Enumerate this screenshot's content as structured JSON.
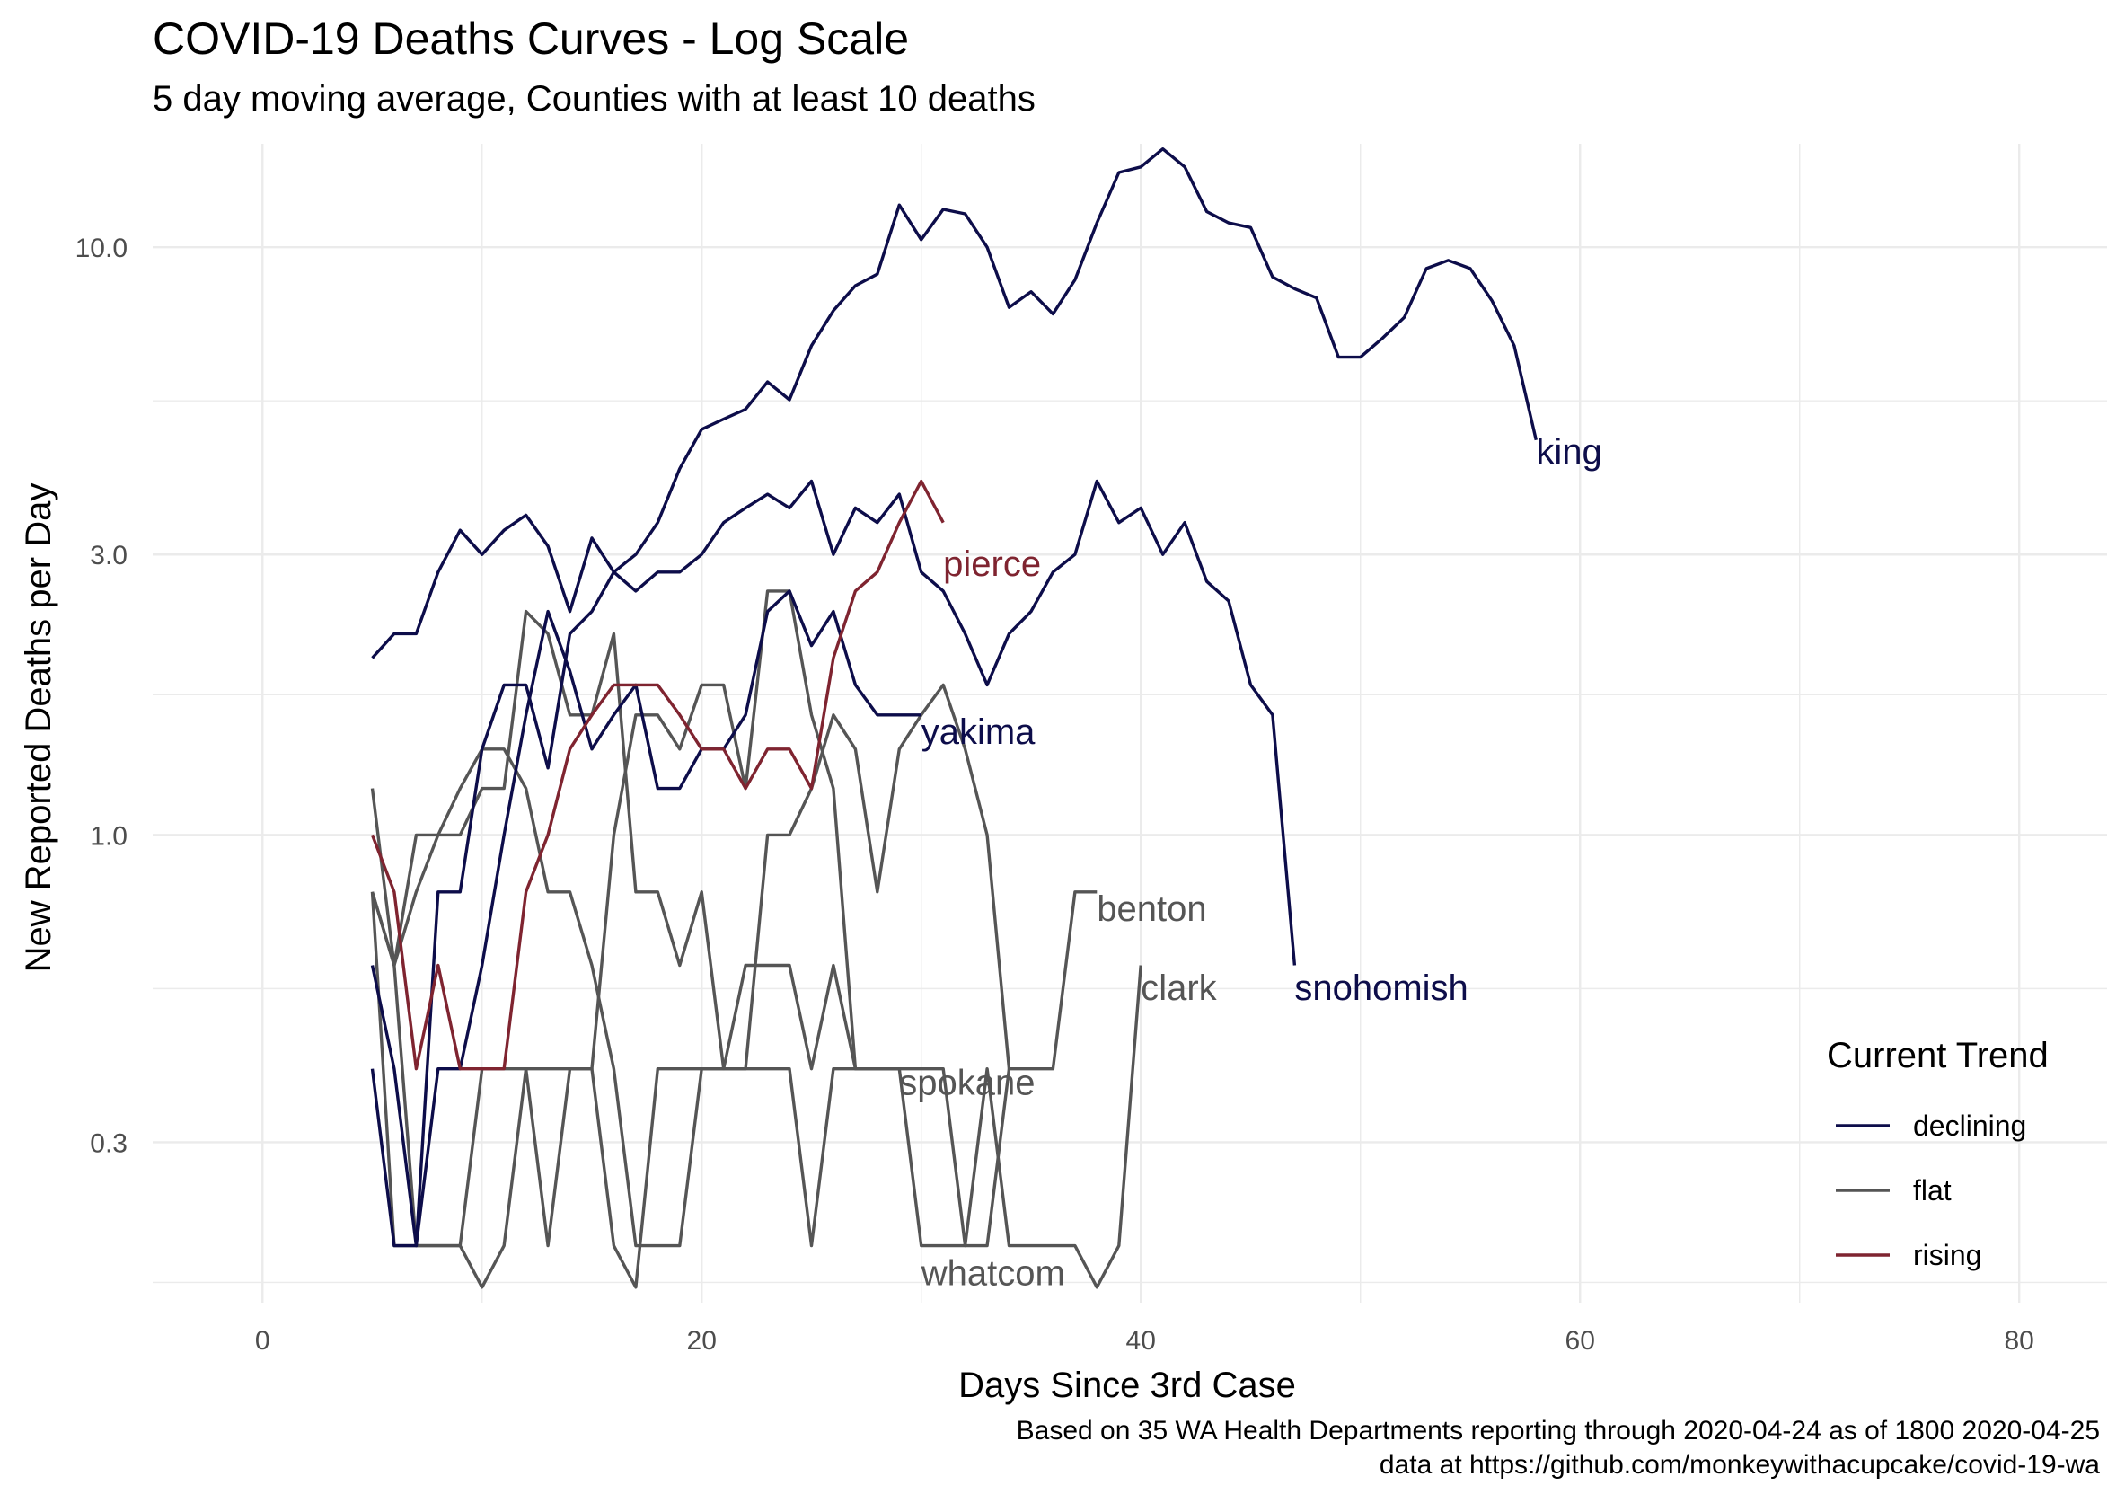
{
  "header": {
    "title": "COVID-19 Deaths Curves - Log Scale",
    "subtitle": "5 day moving average, Counties with at least 10 deaths"
  },
  "caption": {
    "line1": "Based on 35 WA Health Departments reporting through 2020-04-24 as of 1800 2020-04-25",
    "line2": "data at https://github.com/monkeywithacupcake/covid-19-wa"
  },
  "colors": {
    "declining": "#0d0d4a",
    "flat": "#555555",
    "rising": "#7f2430",
    "grid": "#ebebeb"
  },
  "chart_data": {
    "type": "line",
    "title": "COVID-19 Deaths Curves - Log Scale",
    "subtitle": "5 day moving average, Counties with at least 10 deaths",
    "xlabel": "Days Since 3rd Case",
    "ylabel": "New Reported Deaths per Day",
    "xlim": [
      -5,
      84
    ],
    "ylim": [
      0.16,
      15
    ],
    "yscale": "log",
    "x_ticks": [
      0,
      20,
      40,
      60,
      80
    ],
    "y_ticks": [
      0.3,
      1.0,
      3.0,
      10.0
    ],
    "y_tick_labels": [
      "0.3",
      "1.0",
      "3.0",
      "10.0"
    ],
    "grid": true,
    "legend": {
      "title": "Current Trend",
      "position": "right",
      "entries": [
        {
          "name": "declining",
          "color": "#0d0d4a"
        },
        {
          "name": "flat",
          "color": "#555555"
        },
        {
          "name": "rising",
          "color": "#7f2430"
        }
      ]
    },
    "series": [
      {
        "label": "king",
        "trend": "declining",
        "label_x": 58,
        "label_y": 4.5,
        "x": [
          5,
          6,
          7,
          8,
          9,
          10,
          11,
          12,
          13,
          14,
          15,
          16,
          17,
          18,
          19,
          20,
          21,
          22,
          23,
          24,
          25,
          26,
          27,
          28,
          29,
          30,
          31,
          32,
          33,
          34,
          35,
          36,
          37,
          38,
          39,
          40,
          41,
          42,
          43,
          44,
          45,
          46,
          47,
          48,
          49,
          50,
          51,
          52,
          53,
          54,
          55,
          56,
          57,
          58
        ],
        "y": [
          2.0,
          2.2,
          2.2,
          2.8,
          3.3,
          3.0,
          3.3,
          3.5,
          3.1,
          2.4,
          3.2,
          2.8,
          3.0,
          3.4,
          4.2,
          4.9,
          5.1,
          5.3,
          5.9,
          5.5,
          6.8,
          7.8,
          8.6,
          9.0,
          11.8,
          10.3,
          11.6,
          11.4,
          10.0,
          7.9,
          8.4,
          7.7,
          8.8,
          11.0,
          13.4,
          13.7,
          14.7,
          13.7,
          11.5,
          11.0,
          10.8,
          8.9,
          8.5,
          8.2,
          6.5,
          6.5,
          7.0,
          7.6,
          9.2,
          9.5,
          9.2,
          8.1,
          6.8,
          4.7
        ]
      },
      {
        "label": "snohomish",
        "trend": "declining",
        "label_x": 47,
        "label_y": 0.55,
        "x": [
          5,
          6,
          7,
          8,
          9,
          10,
          11,
          12,
          13,
          14,
          15,
          16,
          17,
          18,
          19,
          20,
          21,
          22,
          23,
          24,
          25,
          26,
          27,
          28,
          29,
          30,
          31,
          32,
          33,
          34,
          35,
          36,
          37,
          38,
          39,
          40,
          41,
          42,
          43,
          44,
          45,
          46,
          47
        ],
        "y": [
          0.4,
          0.2,
          0.2,
          0.8,
          0.8,
          1.4,
          1.8,
          1.8,
          1.3,
          2.2,
          2.4,
          2.8,
          2.6,
          2.8,
          2.8,
          3.0,
          3.4,
          3.6,
          3.8,
          3.6,
          4.0,
          3.0,
          3.6,
          3.4,
          3.8,
          2.8,
          2.6,
          2.2,
          1.8,
          2.2,
          2.4,
          2.8,
          3.0,
          4.0,
          3.4,
          3.6,
          3.0,
          3.4,
          2.7,
          2.5,
          1.8,
          1.6,
          0.6
        ]
      },
      {
        "label": "yakima",
        "trend": "declining",
        "label_x": 30,
        "label_y": 1.5,
        "x": [
          5,
          6,
          7,
          8,
          9,
          10,
          11,
          12,
          13,
          14,
          15,
          16,
          17,
          18,
          19,
          20,
          21,
          22,
          23,
          24,
          25,
          26,
          27,
          28,
          29,
          30
        ],
        "y": [
          0.6,
          0.4,
          0.2,
          0.4,
          0.4,
          0.6,
          1.0,
          1.6,
          2.4,
          1.9,
          1.4,
          1.6,
          1.8,
          1.2,
          1.2,
          1.4,
          1.4,
          1.6,
          2.4,
          2.6,
          2.1,
          2.4,
          1.8,
          1.6,
          1.6,
          1.6
        ]
      },
      {
        "label": "pierce",
        "trend": "rising",
        "label_x": 31,
        "label_y": 2.9,
        "x": [
          5,
          6,
          7,
          8,
          9,
          10,
          11,
          12,
          13,
          14,
          15,
          16,
          17,
          18,
          19,
          20,
          21,
          22,
          23,
          24,
          25,
          26,
          27,
          28,
          29,
          30,
          31
        ],
        "y": [
          1.0,
          0.8,
          0.4,
          0.6,
          0.4,
          0.4,
          0.4,
          0.8,
          1.0,
          1.4,
          1.6,
          1.8,
          1.8,
          1.8,
          1.6,
          1.4,
          1.4,
          1.2,
          1.4,
          1.4,
          1.2,
          2.0,
          2.6,
          2.8,
          3.4,
          4.0,
          3.4
        ]
      },
      {
        "label": "benton",
        "trend": "flat",
        "label_x": 38,
        "label_y": 0.75,
        "x": [
          5,
          6,
          7,
          8,
          9,
          10,
          11,
          12,
          13,
          14,
          15,
          16,
          17,
          18,
          19,
          20,
          21,
          22,
          23,
          24,
          25,
          26,
          27,
          28,
          29,
          30,
          31,
          32,
          33,
          34,
          35,
          36,
          37,
          38
        ],
        "y": [
          1.2,
          0.6,
          1.0,
          1.0,
          1.0,
          1.2,
          1.2,
          2.4,
          2.2,
          1.6,
          1.6,
          2.2,
          0.8,
          0.8,
          0.6,
          0.8,
          0.4,
          0.4,
          1.0,
          1.0,
          1.2,
          1.6,
          1.4,
          0.8,
          1.4,
          1.6,
          1.8,
          1.4,
          1.0,
          0.4,
          0.4,
          0.4,
          0.8,
          0.8
        ]
      },
      {
        "label": "clark",
        "trend": "flat",
        "label_x": 40,
        "label_y": 0.55,
        "x": [
          5,
          6,
          7,
          8,
          9,
          10,
          11,
          12,
          13,
          14,
          15,
          16,
          17,
          18,
          19,
          20,
          21,
          22,
          23,
          24,
          25,
          26,
          27,
          28,
          29,
          30,
          31,
          32,
          33,
          34,
          35,
          36,
          37,
          38,
          39,
          40
        ],
        "y": [
          0.8,
          0.6,
          0.8,
          1.0,
          1.2,
          1.4,
          1.4,
          1.2,
          0.8,
          0.8,
          0.6,
          0.4,
          0.2,
          0.2,
          0.2,
          0.4,
          0.4,
          0.4,
          0.4,
          0.4,
          0.2,
          0.4,
          0.4,
          0.4,
          0.4,
          0.2,
          0.2,
          0.2,
          0.4,
          0.2,
          0.2,
          0.2,
          0.2,
          0.17,
          0.2,
          0.6
        ]
      },
      {
        "label": "spokane",
        "trend": "flat",
        "label_x": 29,
        "label_y": 0.38,
        "x": [
          5,
          6,
          7,
          8,
          9,
          10,
          11,
          12,
          13,
          14,
          15,
          16,
          17,
          18,
          19,
          20,
          21,
          22,
          23,
          24,
          25,
          26,
          27,
          28,
          29
        ],
        "y": [
          0.8,
          0.2,
          0.2,
          0.2,
          0.2,
          0.4,
          0.4,
          0.4,
          0.4,
          0.4,
          0.4,
          1.0,
          1.6,
          1.6,
          1.4,
          1.8,
          1.8,
          1.2,
          2.6,
          2.6,
          1.6,
          1.2,
          0.4,
          0.4,
          0.4
        ]
      },
      {
        "label": "whatcom",
        "trend": "flat",
        "label_x": 30,
        "label_y": 0.18,
        "x": [
          5,
          6,
          7,
          8,
          9,
          10,
          11,
          12,
          13,
          14,
          15,
          16,
          17,
          18,
          19,
          20,
          21,
          22,
          23,
          24,
          25,
          26,
          27,
          28,
          29,
          30,
          31,
          32,
          33,
          34
        ],
        "y": [
          0.8,
          0.6,
          0.2,
          0.2,
          0.2,
          0.17,
          0.2,
          0.4,
          0.2,
          0.4,
          0.4,
          0.2,
          0.17,
          0.4,
          0.4,
          0.4,
          0.4,
          0.6,
          0.6,
          0.6,
          0.4,
          0.6,
          0.4,
          0.4,
          0.4,
          0.4,
          0.4,
          0.2,
          0.2,
          0.4
        ]
      }
    ]
  }
}
